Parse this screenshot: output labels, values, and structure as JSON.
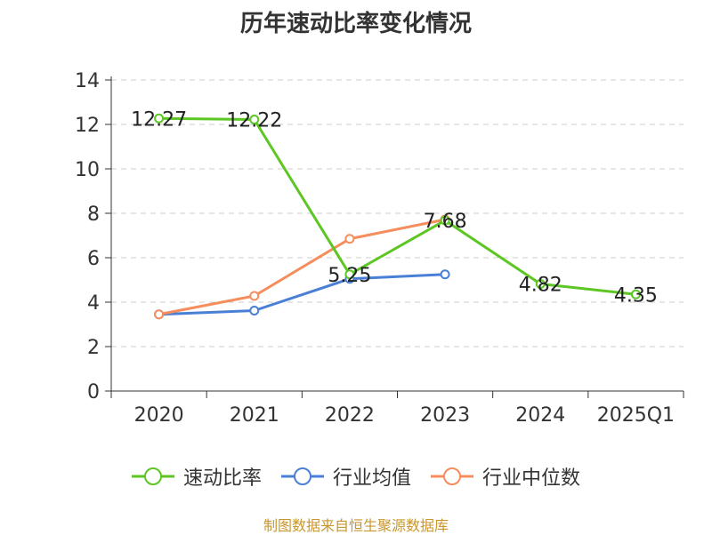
{
  "chart_data": {
    "type": "line",
    "title": "历年速动比率变化情况",
    "categories": [
      "2020",
      "2021",
      "2022",
      "2023",
      "2024",
      "2025Q1"
    ],
    "ylim": [
      0,
      14
    ],
    "yticks": [
      0,
      2,
      4,
      6,
      8,
      10,
      12,
      14
    ],
    "grid": "horizontal-dashed",
    "series": [
      {
        "name": "速动比率",
        "color": "#5cc623",
        "values": [
          12.27,
          12.22,
          5.25,
          7.68,
          4.82,
          4.35
        ],
        "labels": [
          "12.27",
          "12.22",
          "5.25",
          "7.68",
          "4.82",
          "4.35"
        ]
      },
      {
        "name": "行业均值",
        "color": "#4a7fd6",
        "values": [
          3.45,
          3.62,
          5.05,
          5.25,
          null,
          null
        ]
      },
      {
        "name": "行业中位数",
        "color": "#f58d5c",
        "values": [
          3.45,
          4.28,
          6.85,
          7.72,
          null,
          null
        ]
      }
    ],
    "legend_position": "bottom-center"
  },
  "source_note": "制图数据来自恒生聚源数据库"
}
